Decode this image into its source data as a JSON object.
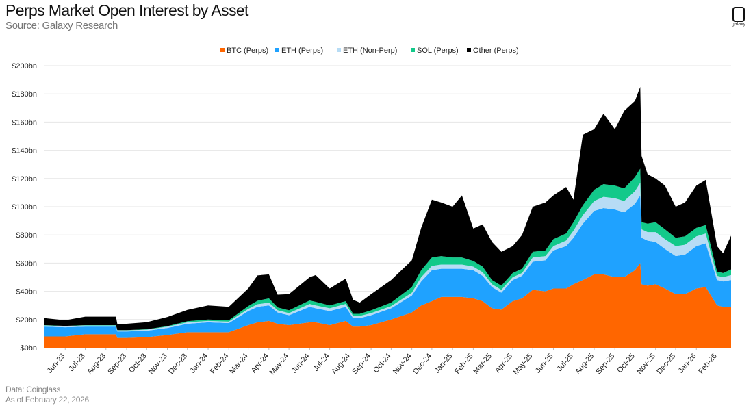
{
  "header": {
    "title": "Perps Market Open Interest by Asset",
    "subtitle": "Source: Galaxy Research",
    "logo_text": "galaxy"
  },
  "footer": {
    "data_source": "Data: Coinglass",
    "as_of": "As of February 22, 2026"
  },
  "chart_data": {
    "type": "area",
    "stacked": true,
    "title": "Perps Market Open Interest by Asset",
    "xlabel": "",
    "ylabel": "",
    "ylim": [
      0,
      200
    ],
    "yticks": [
      0,
      20,
      40,
      60,
      80,
      100,
      120,
      140,
      160,
      180,
      200
    ],
    "ytick_labels": [
      "$0bn",
      "$20bn",
      "$40bn",
      "$60bn",
      "$80bn",
      "$100bn",
      "$120bn",
      "$140bn",
      "$160bn",
      "$180bn",
      "$200bn"
    ],
    "xlim": [
      "2023-05-01",
      "2026-02-22"
    ],
    "xtick_labels": [
      "Jun-23",
      "Jul-23",
      "Aug-23",
      "Sep-23",
      "Oct-23",
      "Nov-23",
      "Dec-23",
      "Jan-24",
      "Feb-24",
      "Mar-24",
      "Apr-24",
      "May-24",
      "Jun-24",
      "Jul-24",
      "Aug-24",
      "Sep-24",
      "Oct-24",
      "Nov-24",
      "Dec-24",
      "Jan-25",
      "Feb-25",
      "Mar-25",
      "Apr-25",
      "May-25",
      "Jun-25",
      "Jul-25",
      "Aug-25",
      "Sep-25",
      "Oct-25",
      "Nov-25",
      "Dec-25",
      "Jan-26",
      "Feb-26"
    ],
    "xtick_dates": [
      "2023-06-01",
      "2023-07-01",
      "2023-08-01",
      "2023-09-01",
      "2023-10-01",
      "2023-11-01",
      "2023-12-01",
      "2024-01-01",
      "2024-02-01",
      "2024-03-01",
      "2024-04-01",
      "2024-05-01",
      "2024-06-01",
      "2024-07-01",
      "2024-08-01",
      "2024-09-01",
      "2024-10-01",
      "2024-11-01",
      "2024-12-01",
      "2025-01-01",
      "2025-02-01",
      "2025-03-01",
      "2025-04-01",
      "2025-05-01",
      "2025-06-01",
      "2025-07-01",
      "2025-08-01",
      "2025-09-01",
      "2025-10-01",
      "2025-11-01",
      "2025-12-01",
      "2026-01-01",
      "2026-02-01"
    ],
    "grid": true,
    "legend_position": "top-center",
    "x": [
      "2023-05-01",
      "2023-06-01",
      "2023-07-01",
      "2023-08-01",
      "2023-08-16",
      "2023-08-18",
      "2023-09-01",
      "2023-10-01",
      "2023-11-01",
      "2023-12-01",
      "2024-01-01",
      "2024-02-01",
      "2024-03-01",
      "2024-03-15",
      "2024-04-01",
      "2024-04-14",
      "2024-05-01",
      "2024-06-01",
      "2024-06-10",
      "2024-07-01",
      "2024-07-25",
      "2024-08-05",
      "2024-08-15",
      "2024-09-01",
      "2024-10-01",
      "2024-11-01",
      "2024-11-15",
      "2024-12-01",
      "2024-12-15",
      "2025-01-01",
      "2025-01-15",
      "2025-02-01",
      "2025-02-15",
      "2025-03-01",
      "2025-03-15",
      "2025-04-01",
      "2025-04-15",
      "2025-05-01",
      "2025-05-20",
      "2025-06-01",
      "2025-06-20",
      "2025-07-01",
      "2025-07-15",
      "2025-08-01",
      "2025-08-15",
      "2025-09-01",
      "2025-09-15",
      "2025-10-01",
      "2025-10-09",
      "2025-10-11",
      "2025-10-20",
      "2025-11-01",
      "2025-11-15",
      "2025-12-01",
      "2025-12-15",
      "2026-01-01",
      "2026-01-15",
      "2026-02-01",
      "2026-02-10",
      "2026-02-22"
    ],
    "series": [
      {
        "name": "BTC (Perps)",
        "color": "#ff6600",
        "values": [
          8,
          8,
          9.5,
          9.5,
          9.5,
          7,
          7,
          7.5,
          9,
          11,
          11,
          11,
          16,
          18,
          19,
          17,
          16,
          18,
          18,
          16,
          19,
          15,
          15,
          16,
          20,
          25,
          30,
          33,
          36,
          36,
          36,
          35,
          33,
          28,
          27,
          33,
          35,
          41,
          40,
          42,
          42,
          45,
          48,
          52,
          52,
          50,
          50,
          55,
          60,
          45,
          44,
          45,
          42,
          38,
          38,
          42,
          43,
          30,
          29,
          29
        ]
      },
      {
        "name": "ETH (Perps)",
        "color": "#1fa2ff",
        "values": [
          7,
          6.5,
          5.5,
          5.5,
          5.5,
          4.5,
          4.5,
          4.5,
          5,
          6,
          7,
          6.5,
          10,
          11,
          11,
          8,
          7,
          11,
          10,
          10,
          10,
          6,
          6,
          7,
          8,
          12,
          17,
          22,
          20,
          20,
          20,
          20,
          18,
          15,
          12,
          15,
          16,
          20,
          22,
          27,
          30,
          33,
          40,
          45,
          47,
          48,
          46,
          47,
          48,
          33,
          32,
          30,
          28,
          27,
          28,
          30,
          31,
          18,
          18,
          19
        ]
      },
      {
        "name": "ETH (Non-Perp)",
        "color": "#b7dcf5",
        "values": [
          0.8,
          0.8,
          0.8,
          0.8,
          0.8,
          0.8,
          0.8,
          0.8,
          0.9,
          1,
          1,
          1,
          1.5,
          1.8,
          2,
          1.6,
          1.5,
          2,
          2,
          2,
          2,
          1.5,
          1.5,
          1.5,
          1.5,
          2,
          3,
          3,
          3,
          3,
          3,
          2.5,
          2.5,
          2,
          2,
          2,
          2,
          3,
          3,
          3,
          4,
          5,
          6,
          7,
          8,
          8,
          8,
          9,
          9,
          6,
          6,
          7,
          7,
          7,
          7,
          7,
          7,
          3,
          3,
          3.5
        ]
      },
      {
        "name": "SOL (Perps)",
        "color": "#12c98a",
        "values": [
          0.2,
          0.2,
          0.2,
          0.2,
          0.2,
          0.2,
          0.2,
          0.3,
          0.4,
          0.8,
          1,
          1,
          2,
          2.5,
          3,
          2,
          2,
          2.5,
          2.5,
          2,
          2,
          1.5,
          1.5,
          2,
          2.5,
          4,
          5,
          6,
          6,
          5,
          5,
          4,
          4,
          3,
          3,
          3,
          3,
          4,
          4,
          5,
          5,
          6,
          7,
          8,
          9,
          9,
          9,
          10,
          10,
          5,
          6,
          7,
          7,
          6,
          6,
          6,
          6,
          3,
          3,
          4
        ]
      },
      {
        "name": "Other (Perps)",
        "color": "#000000",
        "values": [
          5,
          4,
          6,
          6,
          6,
          4.5,
          4.5,
          5,
          6.5,
          8,
          10,
          9.5,
          12.5,
          18,
          17,
          9,
          11.5,
          16.5,
          19,
          12,
          16,
          10,
          8,
          11.5,
          16,
          19,
          30,
          41,
          38,
          36,
          44,
          23,
          30,
          27,
          24,
          19,
          24,
          32,
          34,
          31,
          33,
          16,
          50,
          43,
          50,
          40,
          55,
          54,
          58,
          47,
          35,
          31,
          31,
          22,
          24,
          30,
          32,
          18,
          14,
          24
        ]
      }
    ]
  }
}
